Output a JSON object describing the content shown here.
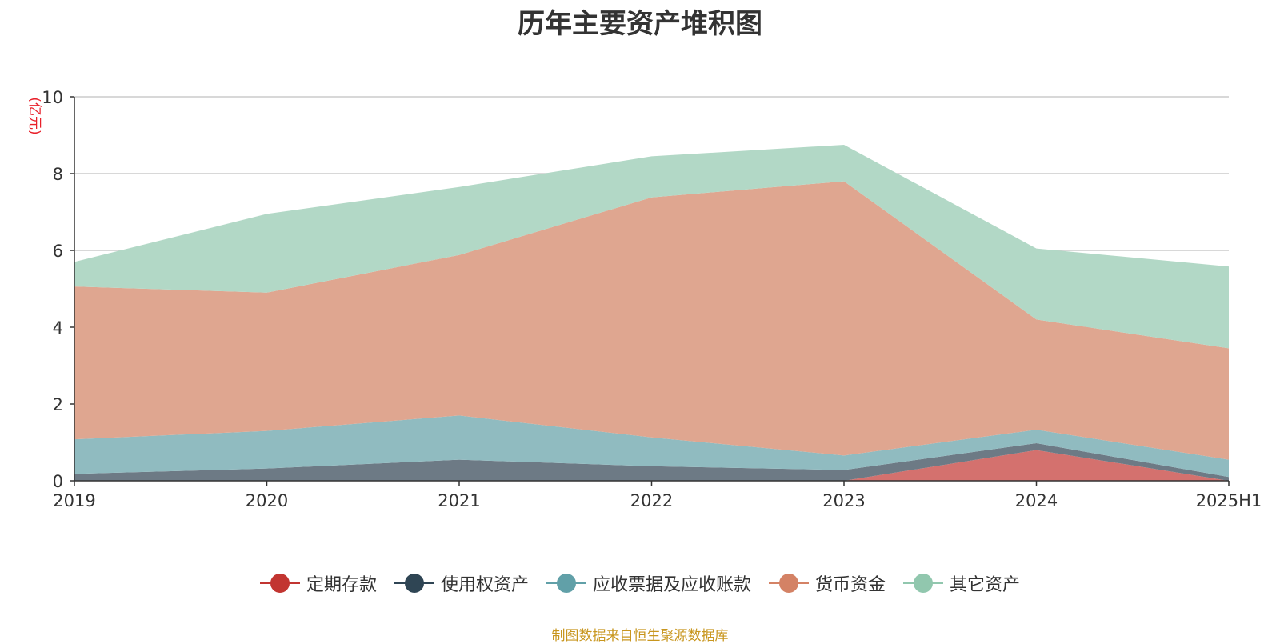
{
  "chart_data": {
    "type": "area",
    "stacked": true,
    "title": "历年主要资产堆积图",
    "ylabel": "(亿元)",
    "xlabel": "",
    "ylim": [
      0,
      10
    ],
    "yticks": [
      0,
      2,
      4,
      6,
      8,
      10
    ],
    "grid": true,
    "legend_position": "bottom",
    "categories": [
      "2019",
      "2020",
      "2021",
      "2022",
      "2023",
      "2024",
      "2025H1"
    ],
    "series": [
      {
        "name": "定期存款",
        "color": "#c23531",
        "fill": "#d4716e",
        "values": [
          0,
          0,
          0,
          0,
          0,
          0.8,
          0
        ]
      },
      {
        "name": "使用权资产",
        "color": "#2f4554",
        "fill": "#6d7a85",
        "values": [
          0.18,
          0.32,
          0.55,
          0.38,
          0.28,
          0.18,
          0.1
        ]
      },
      {
        "name": "应收票据及应收账款",
        "color": "#61a0a8",
        "fill": "#90bbc0",
        "values": [
          0.9,
          0.98,
          1.15,
          0.75,
          0.38,
          0.35,
          0.45
        ]
      },
      {
        "name": "货币资金",
        "color": "#d48265",
        "fill": "#dfa690",
        "values": [
          3.98,
          3.6,
          4.18,
          6.25,
          7.14,
          2.87,
          2.9
        ]
      },
      {
        "name": "其它资产",
        "color": "#91c7ae",
        "fill": "#b2d8c6",
        "values": [
          0.64,
          2.05,
          1.77,
          1.07,
          0.95,
          1.85,
          2.13
        ]
      }
    ],
    "source": "制图数据来自恒生聚源数据库"
  }
}
